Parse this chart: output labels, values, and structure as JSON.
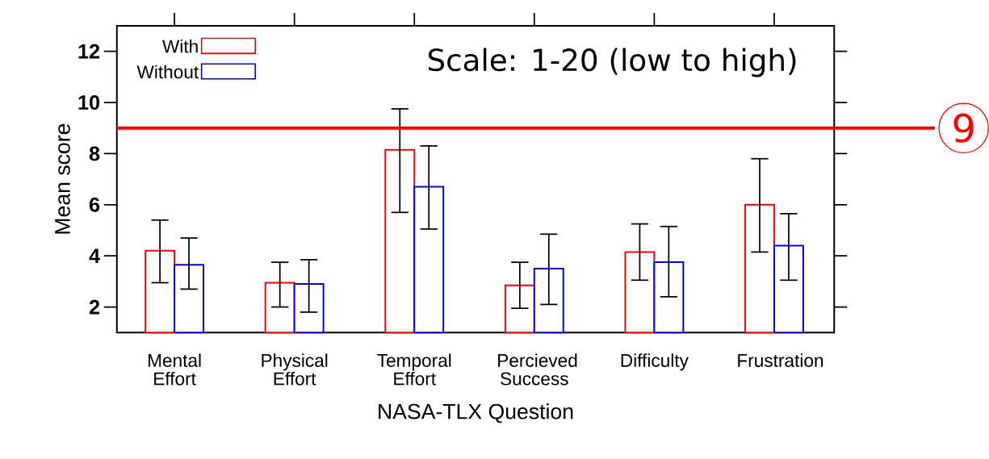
{
  "chart_data": {
    "type": "bar",
    "xlabel": "NASA-TLX Question",
    "ylabel": "Mean score",
    "categories": [
      "Mental Effort",
      "Physical Effort",
      "Temporal Effort",
      "Percieved Success",
      "Difficulty",
      "Frustration"
    ],
    "series": [
      {
        "name": "With",
        "color": "#ff0000",
        "values": [
          4.2,
          2.95,
          8.15,
          2.85,
          4.15,
          6.0
        ],
        "errors": [
          [
            2.95,
            5.4
          ],
          [
            2.0,
            3.75
          ],
          [
            5.7,
            9.75
          ],
          [
            1.95,
            3.75
          ],
          [
            3.05,
            5.25
          ],
          [
            4.15,
            7.8
          ]
        ]
      },
      {
        "name": "Without",
        "color": "#0000ff",
        "values": [
          3.65,
          2.9,
          6.7,
          3.5,
          3.75,
          4.4
        ],
        "errors": [
          [
            2.7,
            4.7
          ],
          [
            1.8,
            3.85
          ],
          [
            5.05,
            8.3
          ],
          [
            2.1,
            4.85
          ],
          [
            2.4,
            5.15
          ],
          [
            3.05,
            5.65
          ]
        ]
      }
    ],
    "ylim": [
      1,
      13
    ],
    "yticks": [
      2,
      4,
      6,
      8,
      10,
      12
    ],
    "ref_lines": [
      {
        "axis": "y",
        "value": 9,
        "label": "9",
        "color": "#ff0000"
      }
    ],
    "annotations": [
      "Scale: 1-20 (low to high)"
    ],
    "legend": "top left",
    "grid": false
  }
}
